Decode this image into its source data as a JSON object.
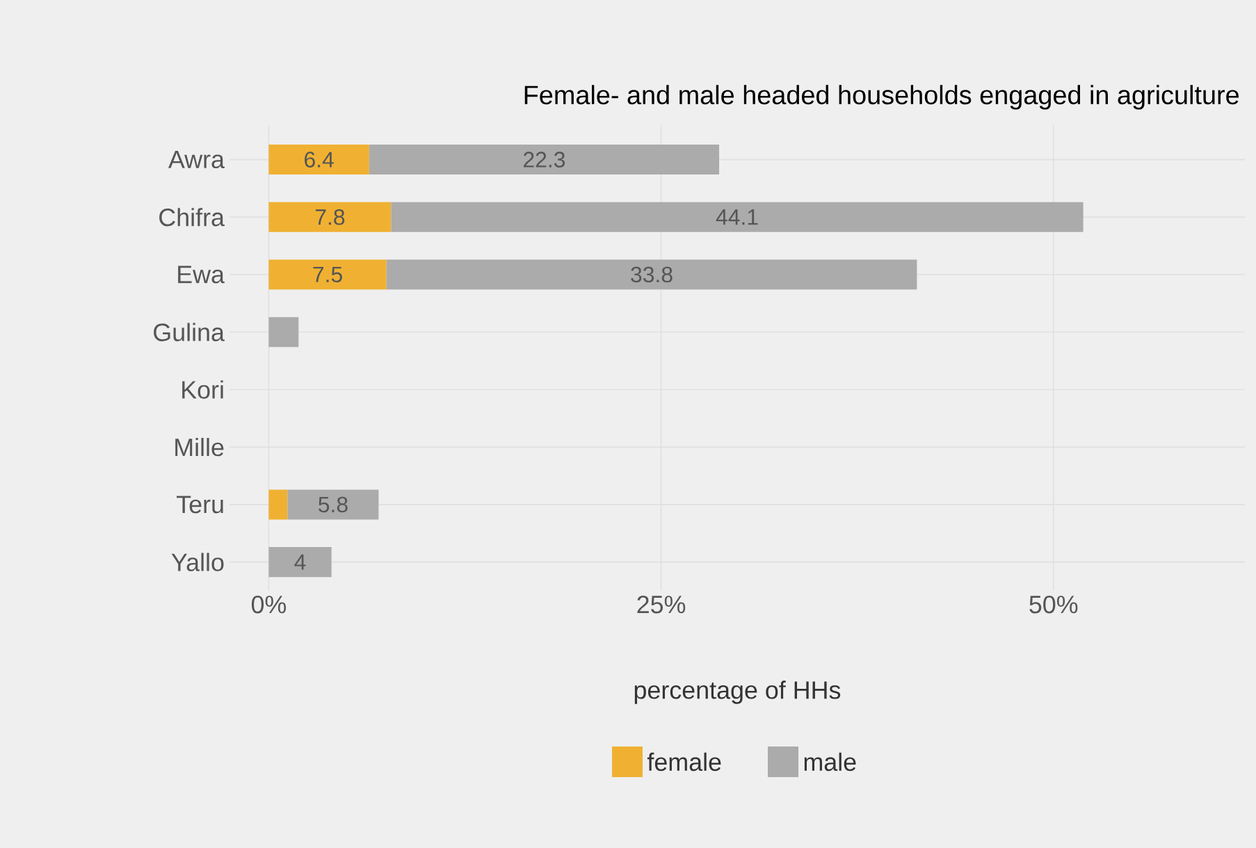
{
  "chart_data": {
    "type": "bar",
    "orientation": "horizontal",
    "stacked": true,
    "title": "Female- and male headed households engaged in agriculture",
    "xlabel": "percentage of HHs",
    "categories": [
      "Awra",
      "Chifra",
      "Ewa",
      "Gulina",
      "Kori",
      "Mille",
      "Teru",
      "Yallo"
    ],
    "series": [
      {
        "name": "female",
        "color": "#f0b132",
        "values": [
          6.4,
          7.8,
          7.5,
          null,
          null,
          null,
          1.2,
          null
        ],
        "value_labels": [
          "6.4",
          "7.8",
          "7.5",
          null,
          null,
          null,
          null,
          null
        ]
      },
      {
        "name": "male",
        "color": "#ababab",
        "values": [
          22.3,
          44.1,
          33.8,
          1.9,
          null,
          null,
          5.8,
          4
        ],
        "value_labels": [
          "22.3",
          "44.1",
          "33.8",
          null,
          null,
          null,
          "5.8",
          "4"
        ]
      }
    ],
    "xlim": [
      -2.5,
      62.2
    ],
    "xticks": [
      {
        "value": 0,
        "label": "0%"
      },
      {
        "value": 25,
        "label": "25%"
      },
      {
        "value": 50,
        "label": "50%"
      }
    ],
    "grid": true,
    "legend": "bottom"
  }
}
